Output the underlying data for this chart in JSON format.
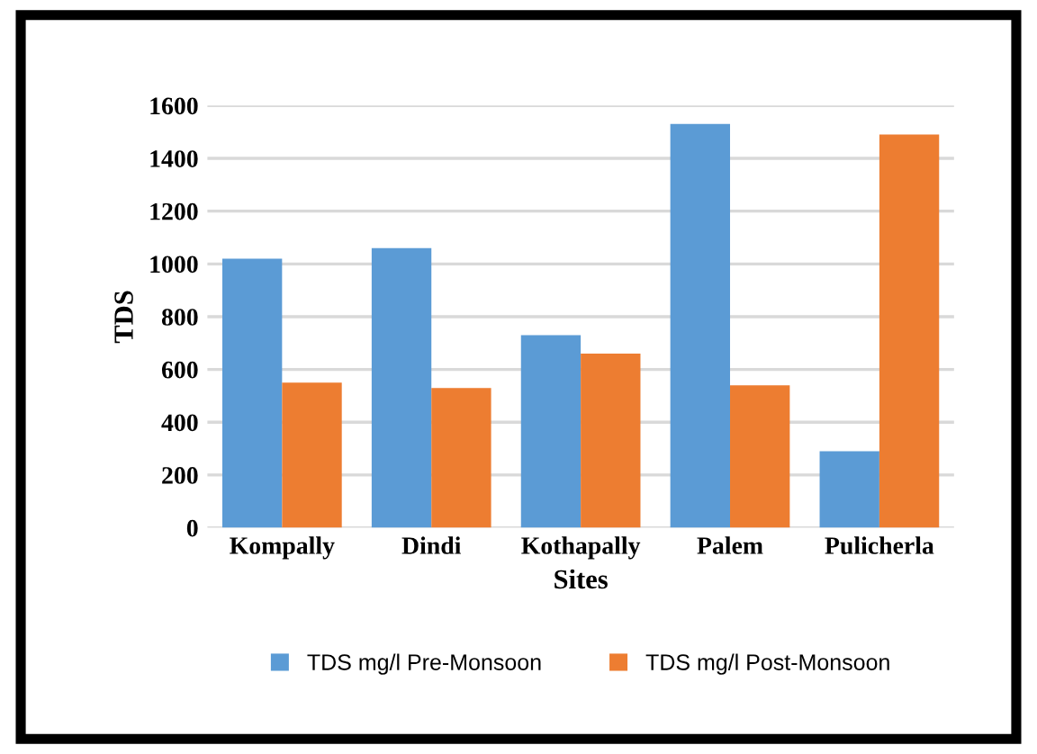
{
  "chart_data": {
    "type": "bar",
    "xlabel": "Sites",
    "ylabel": "TDS",
    "categories": [
      "Kompally",
      "Dindi",
      "Kothapally",
      "Palem",
      "Pulicherla"
    ],
    "series": [
      {
        "name": "TDS mg/l Pre-Monsoon",
        "color": "#5b9bd5",
        "values": [
          1020,
          1060,
          730,
          1530,
          290
        ]
      },
      {
        "name": "TDS mg/l Post-Monsoon",
        "color": "#ed7d31",
        "values": [
          550,
          530,
          660,
          540,
          1490
        ]
      }
    ],
    "ylim": [
      0,
      1600
    ],
    "yticks": [
      0,
      200,
      400,
      600,
      800,
      1000,
      1200,
      1400,
      1600
    ],
    "grid": "y",
    "legend": "bottom"
  }
}
